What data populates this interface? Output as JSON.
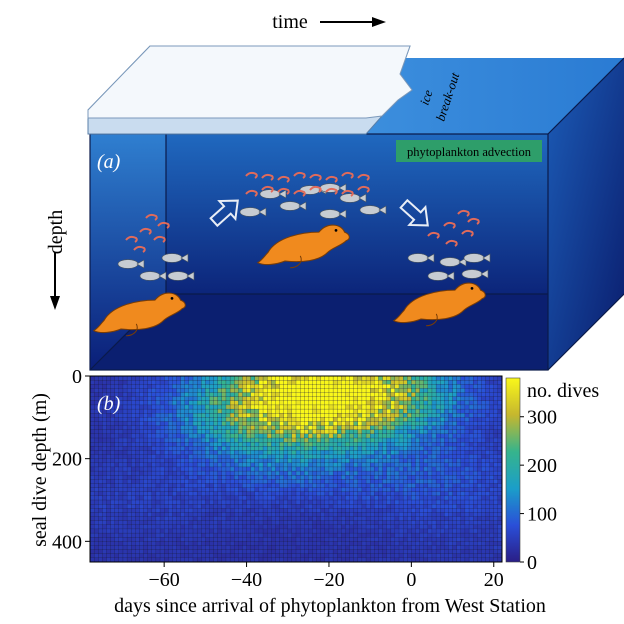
{
  "panel_a": {
    "label": "(a)",
    "time_label": "time",
    "depth_label": "depth",
    "ice_label_line1": "ice",
    "ice_label_line2": "break-out",
    "advection_label": "phytoplankton advection"
  },
  "panel_b": {
    "label": "(b)",
    "colorbar_title": "no. dives"
  },
  "colors": {
    "ocean_top": "#2f7fd0",
    "ocean_bottom": "#0a1e78",
    "ice": "#f4f8fc",
    "advection_box": "#2e9e6a",
    "seal": "#f08a1e",
    "krill": "#e26b5a",
    "fish": "#c7ccd2"
  },
  "chart_data": {
    "type": "heatmap",
    "title": "",
    "xlabel": "days since arrival of phytoplankton from West Station",
    "ylabel": "seal dive depth (m)",
    "xlim": [
      -78,
      22
    ],
    "ylim": [
      450,
      0
    ],
    "xticks": [
      -60,
      -40,
      -20,
      0,
      20
    ],
    "yticks": [
      0,
      200,
      400
    ],
    "colorbar": {
      "label": "no. dives",
      "range": [
        0,
        380
      ],
      "ticks": [
        0,
        100,
        200,
        300
      ]
    },
    "description_points": [
      {
        "x": -25,
        "y": 60,
        "value": 350
      },
      {
        "x": -20,
        "y": 10,
        "value": 300
      },
      {
        "x": -10,
        "y": 60,
        "value": 230
      },
      {
        "x": -40,
        "y": 90,
        "value": 150
      },
      {
        "x": -30,
        "y": 200,
        "value": 110
      },
      {
        "x": 5,
        "y": 250,
        "value": 90
      },
      {
        "x": -65,
        "y": 300,
        "value": 40
      },
      {
        "x": 15,
        "y": 400,
        "value": 20
      }
    ]
  }
}
